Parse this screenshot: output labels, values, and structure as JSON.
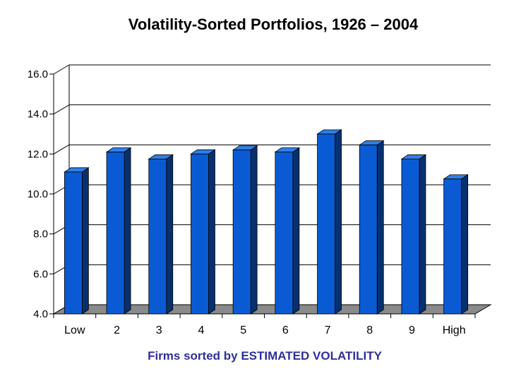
{
  "chart_data": {
    "type": "bar",
    "title": "Volatility-Sorted Portfolios, 1926 – 2004",
    "xlabel": "Firms sorted by ESTIMATED VOLATILITY",
    "ylabel": "",
    "categories": [
      "Low",
      "2",
      "3",
      "4",
      "5",
      "6",
      "7",
      "8",
      "9",
      "High"
    ],
    "values": [
      11.1,
      12.1,
      11.75,
      12.0,
      12.2,
      12.1,
      13.0,
      12.45,
      11.75,
      10.75
    ],
    "ylim": [
      4.0,
      16.0
    ],
    "yticks": [
      "4.0",
      "6.0",
      "8.0",
      "10.0",
      "12.0",
      "14.0",
      "16.0"
    ],
    "grid": true,
    "legend": "none",
    "style": "3d",
    "colors": {
      "bar_front": "#0a5bd3",
      "bar_side": "#06306e",
      "bar_top": "#2f7fe8",
      "floor": "#8a8a8a",
      "title": "#000000",
      "xlabel": "#2f2f9a"
    }
  }
}
